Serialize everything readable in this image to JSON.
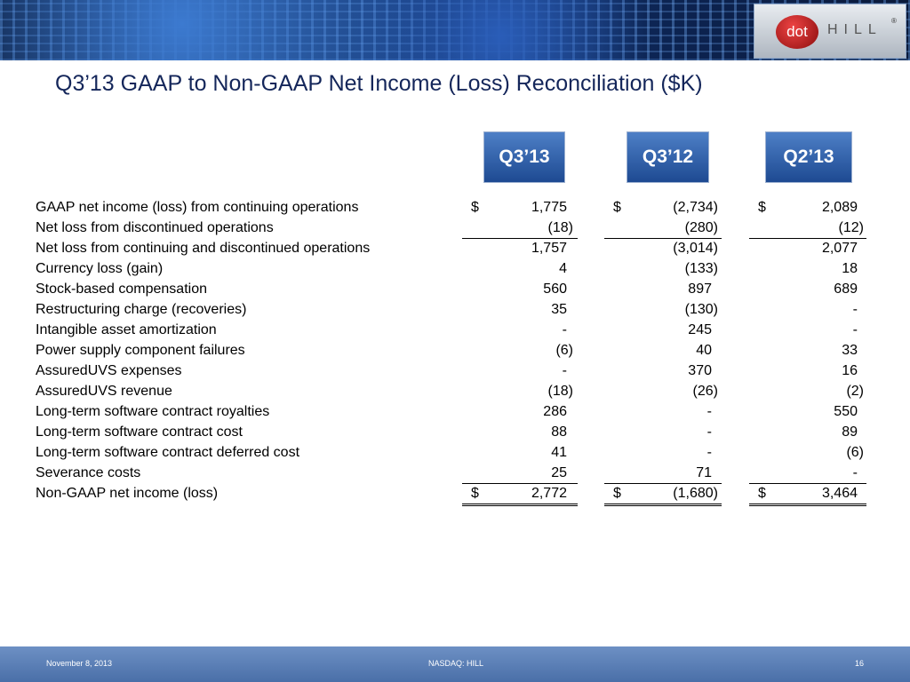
{
  "header": {
    "logo": {
      "left": "dot",
      "right": "HILL",
      "mark": "®"
    },
    "title": "Q3’13 GAAP to Non-GAAP Net Income (Loss) Reconciliation ($K)"
  },
  "table": {
    "columns": [
      "Q3’13",
      "Q3’12",
      "Q2’13"
    ],
    "rows": [
      {
        "label": "GAAP net income (loss) from continuing operations",
        "currency": [
          "$",
          "$",
          "$"
        ],
        "values": [
          "1,775",
          "(2,734)",
          "2,089"
        ]
      },
      {
        "label": "Net loss from discontinued operations",
        "values": [
          "(18)",
          "(280)",
          "(12)"
        ]
      },
      {
        "label": "Net loss from continuing and discontinued operations",
        "values": [
          "1,757",
          "(3,014)",
          "2,077"
        ]
      },
      {
        "label": "Currency loss (gain)",
        "values": [
          "4",
          "(133)",
          "18"
        ]
      },
      {
        "label": "Stock-based compensation",
        "values": [
          "560",
          "897",
          "689"
        ]
      },
      {
        "label": "Restructuring charge (recoveries)",
        "values": [
          "35",
          "(130)",
          "-"
        ]
      },
      {
        "label": "Intangible asset amortization",
        "values": [
          "-",
          "245",
          "-"
        ]
      },
      {
        "label": "Power supply component failures",
        "values": [
          "(6)",
          "40",
          "33"
        ]
      },
      {
        "label": "AssuredUVS expenses",
        "values": [
          "-",
          "370",
          "16"
        ]
      },
      {
        "label": "AssuredUVS revenue",
        "values": [
          "(18)",
          "(26)",
          "(2)"
        ]
      },
      {
        "label": "Long-term software contract royalties",
        "values": [
          "286",
          "-",
          "550"
        ]
      },
      {
        "label": "Long-term software contract cost",
        "values": [
          "88",
          "-",
          "89"
        ]
      },
      {
        "label": "Long-term software contract deferred cost",
        "values": [
          "41",
          "-",
          "(6)"
        ]
      },
      {
        "label": "Severance costs",
        "values": [
          "25",
          "71",
          "-"
        ]
      },
      {
        "label": "Non-GAAP net income (loss)",
        "currency": [
          "$",
          "$",
          "$"
        ],
        "values": [
          "2,772",
          "(1,680)",
          "3,464"
        ]
      }
    ]
  },
  "footer": {
    "date": "November 8, 2013",
    "ticker": "NASDAQ: HILL",
    "page": "16"
  }
}
